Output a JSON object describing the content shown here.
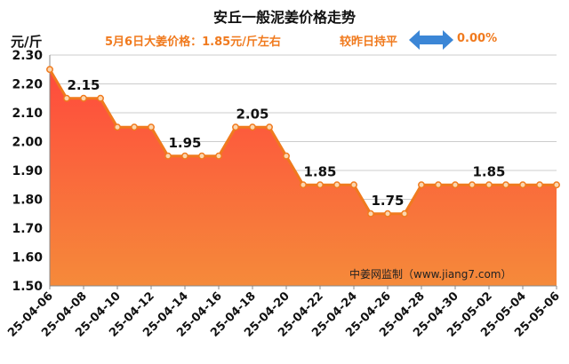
{
  "chart_data": {
    "type": "area",
    "title": "安丘一般泥姜价格走势",
    "subtitle": "5月6日大姜价格：1.85元/斤左右",
    "change_label": "较昨日持平",
    "change_pct": "0.00%",
    "ylabel": "元/斤",
    "xlabel": "",
    "ylim": [
      1.5,
      2.3
    ],
    "y_ticks": [
      "1.50",
      "1.60",
      "1.70",
      "1.80",
      "1.90",
      "2.00",
      "2.10",
      "2.20",
      "2.30"
    ],
    "x_tick_labels": [
      "25-04-06",
      "25-04-08",
      "25-04-10",
      "25-04-12",
      "25-04-14",
      "25-04-16",
      "25-04-18",
      "25-04-20",
      "25-04-22",
      "25-04-24",
      "25-04-26",
      "25-04-28",
      "25-04-30",
      "25-05-02",
      "25-05-04",
      "25-05-06"
    ],
    "values": [
      2.25,
      2.15,
      2.15,
      2.15,
      2.05,
      2.05,
      2.05,
      1.95,
      1.95,
      1.95,
      1.95,
      2.05,
      2.05,
      2.05,
      1.95,
      1.85,
      1.85,
      1.85,
      1.85,
      1.75,
      1.75,
      1.75,
      1.85,
      1.85,
      1.85,
      1.85,
      1.85,
      1.85,
      1.85,
      1.85,
      1.85
    ],
    "annotations": [
      {
        "index": 2,
        "text": "2.15"
      },
      {
        "index": 8,
        "text": "1.95"
      },
      {
        "index": 12,
        "text": "2.05"
      },
      {
        "index": 16,
        "text": "1.85"
      },
      {
        "index": 20,
        "text": "1.75"
      },
      {
        "index": 26,
        "text": "1.85"
      }
    ],
    "watermark": "中姜网监制（www.jiang7.com）",
    "colors": {
      "line": "#f07a1e",
      "fill_top": "#ff4a3d",
      "fill_bottom": "#f58a3a",
      "marker_fill": "#fbd7b0",
      "arrow": "#3b86d6"
    }
  }
}
